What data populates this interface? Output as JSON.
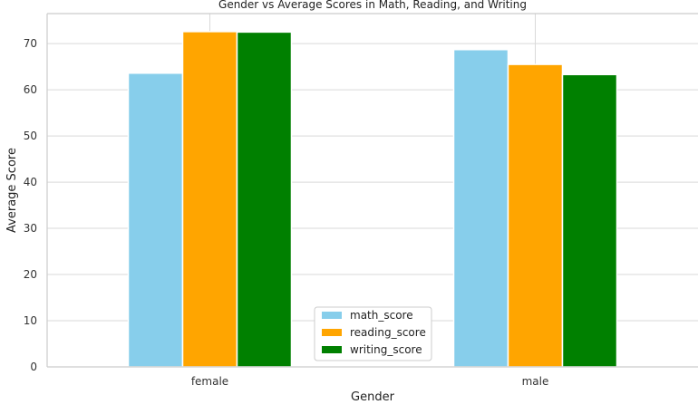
{
  "chart_data": {
    "type": "bar",
    "title": "Gender vs Average Scores in Math, Reading, and Writing",
    "xlabel": "Gender",
    "ylabel": "Average Score",
    "categories": [
      "female",
      "male"
    ],
    "series": [
      {
        "name": "math_score",
        "values": [
          63.6,
          68.7
        ],
        "color": "#87CEEB"
      },
      {
        "name": "reading_score",
        "values": [
          72.6,
          65.5
        ],
        "color": "#FFA500"
      },
      {
        "name": "writing_score",
        "values": [
          72.5,
          63.3
        ],
        "color": "#008000"
      }
    ],
    "ylim": [
      0,
      76.5
    ],
    "yticks": [
      0,
      10,
      20,
      30,
      40,
      50,
      60,
      70
    ],
    "grid": true,
    "legend_position": "bottom-center"
  }
}
